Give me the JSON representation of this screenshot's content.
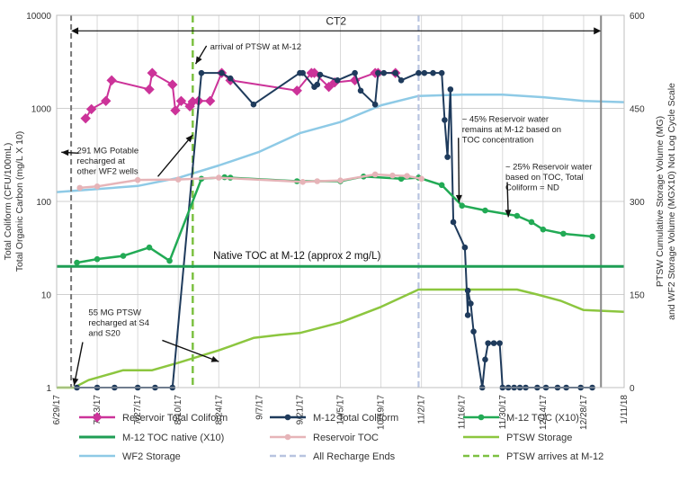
{
  "chart_data": {
    "type": "line",
    "x_axis": {
      "type": "date",
      "range": [
        "2017-06-29",
        "2018-01-11"
      ],
      "tick_labels": [
        "6/29/17",
        "7/13/17",
        "7/27/17",
        "8/10/17",
        "8/24/17",
        "9/7/17",
        "9/21/17",
        "10/5/17",
        "10/19/17",
        "11/2/17",
        "11/16/17",
        "11/30/17",
        "12/14/17",
        "12/28/17",
        "1/11/18"
      ]
    },
    "y_left": {
      "label": "Total Coliform (CFU/100mL)\nTotal Organic Carbon (mg/L X 10)",
      "scale": "log",
      "range": [
        1,
        10000
      ],
      "tick_labels": [
        "1",
        "10",
        "100",
        "1000",
        "10000"
      ]
    },
    "y_right": {
      "label": "PTSW Cumulative Storage Volume (MG)\nand WF2 Storage Volume (MGX10) Not Log Cycle Scale",
      "scale": "linear",
      "range": [
        0,
        600
      ],
      "tick_labels": [
        "0",
        "150",
        "300",
        "450",
        "600"
      ]
    },
    "grid": true,
    "series": [
      {
        "name": "Reservoir Total Coliform",
        "axis": "left",
        "color": "#cc3399",
        "marker": "diamond",
        "points": [
          [
            "2017-07-09",
            780
          ],
          [
            "2017-07-11",
            980
          ],
          [
            "2017-07-16",
            1200
          ],
          [
            "2017-07-18",
            2000
          ],
          [
            "2017-07-31",
            1600
          ],
          [
            "2017-08-01",
            2400
          ],
          [
            "2017-08-08",
            1800
          ],
          [
            "2017-08-09",
            950
          ],
          [
            "2017-08-11",
            1200
          ],
          [
            "2017-08-14",
            1050
          ],
          [
            "2017-08-15",
            1180
          ],
          [
            "2017-08-17",
            1200
          ],
          [
            "2017-08-21",
            1200
          ],
          [
            "2017-08-25",
            2400
          ],
          [
            "2017-08-28",
            2000
          ],
          [
            "2017-09-20",
            1550
          ],
          [
            "2017-09-25",
            2400
          ],
          [
            "2017-09-26",
            2400
          ],
          [
            "2017-10-01",
            1700
          ],
          [
            "2017-10-03",
            1900
          ],
          [
            "2017-10-10",
            2000
          ],
          [
            "2017-10-17",
            2400
          ],
          [
            "2017-10-18",
            2400
          ],
          [
            "2017-10-24",
            2400
          ]
        ]
      },
      {
        "name": "M-12 Total Coliform",
        "axis": "left",
        "color": "#1f3b5c",
        "marker": "circle",
        "points": [
          [
            "2017-07-06",
            1
          ],
          [
            "2017-07-13",
            1
          ],
          [
            "2017-07-19",
            1
          ],
          [
            "2017-07-27",
            1
          ],
          [
            "2017-08-02",
            1
          ],
          [
            "2017-08-08",
            1
          ],
          [
            "2017-08-18",
            2400
          ],
          [
            "2017-08-25",
            2400
          ],
          [
            "2017-08-28",
            2100
          ],
          [
            "2017-09-05",
            1100
          ],
          [
            "2017-09-21",
            2400
          ],
          [
            "2017-09-22",
            2400
          ],
          [
            "2017-09-26",
            1700
          ],
          [
            "2017-09-27",
            1800
          ],
          [
            "2017-09-28",
            2300
          ],
          [
            "2017-10-04",
            2000
          ],
          [
            "2017-10-10",
            2400
          ],
          [
            "2017-10-12",
            1550
          ],
          [
            "2017-10-17",
            1100
          ],
          [
            "2017-10-18",
            2400
          ],
          [
            "2017-10-20",
            2400
          ],
          [
            "2017-10-24",
            2400
          ],
          [
            "2017-10-26",
            2000
          ],
          [
            "2017-11-01",
            2400
          ],
          [
            "2017-11-03",
            2400
          ],
          [
            "2017-11-06",
            2400
          ],
          [
            "2017-11-09",
            2400
          ],
          [
            "2017-11-10",
            750
          ],
          [
            "2017-11-11",
            300
          ],
          [
            "2017-11-12",
            1600
          ],
          [
            "2017-11-13",
            60
          ],
          [
            "2017-11-17",
            32
          ],
          [
            "2017-11-18",
            6
          ],
          [
            "2017-11-18",
            11
          ],
          [
            "2017-11-19",
            8
          ],
          [
            "2017-11-20",
            4
          ],
          [
            "2017-11-23",
            1
          ],
          [
            "2017-11-24",
            2
          ],
          [
            "2017-11-25",
            3
          ],
          [
            "2017-11-27",
            3
          ],
          [
            "2017-11-29",
            3
          ],
          [
            "2017-11-30",
            1
          ],
          [
            "2017-12-02",
            1
          ],
          [
            "2017-12-04",
            1
          ],
          [
            "2017-12-06",
            1
          ],
          [
            "2017-12-08",
            1
          ],
          [
            "2017-12-12",
            1
          ],
          [
            "2017-12-15",
            1
          ],
          [
            "2017-12-19",
            1
          ],
          [
            "2017-12-22",
            1
          ],
          [
            "2017-12-27",
            1
          ],
          [
            "2017-12-31",
            1
          ]
        ]
      },
      {
        "name": "M-12 TOC (X10)",
        "axis": "left",
        "color": "#22aa55",
        "marker": "circle",
        "points": [
          [
            "2017-07-06",
            22
          ],
          [
            "2017-07-13",
            24
          ],
          [
            "2017-07-22",
            26
          ],
          [
            "2017-07-31",
            32
          ],
          [
            "2017-08-07",
            23
          ],
          [
            "2017-08-18",
            175
          ],
          [
            "2017-08-26",
            182
          ],
          [
            "2017-08-28",
            180
          ],
          [
            "2017-09-20",
            165
          ],
          [
            "2017-10-05",
            165
          ],
          [
            "2017-10-13",
            185
          ],
          [
            "2017-10-26",
            175
          ],
          [
            "2017-11-01",
            180
          ],
          [
            "2017-11-09",
            150
          ],
          [
            "2017-11-16",
            90
          ],
          [
            "2017-11-24",
            80
          ],
          [
            "2017-12-05",
            70
          ],
          [
            "2017-12-10",
            60
          ],
          [
            "2017-12-14",
            50
          ],
          [
            "2017-12-21",
            45
          ],
          [
            "2017-12-31",
            42
          ]
        ]
      },
      {
        "name": "M-12 TOC native (X10)",
        "axis": "left",
        "color": "#1f9e55",
        "marker": "none",
        "points": [
          [
            "2017-06-29",
            20
          ],
          [
            "2018-01-11",
            20
          ]
        ]
      },
      {
        "name": "Reservoir TOC",
        "axis": "left",
        "color": "#e6b4b8",
        "marker": "circle",
        "points": [
          [
            "2017-07-07",
            140
          ],
          [
            "2017-07-13",
            145
          ],
          [
            "2017-07-27",
            170
          ],
          [
            "2017-08-10",
            172
          ],
          [
            "2017-08-24",
            180
          ],
          [
            "2017-09-22",
            162
          ],
          [
            "2017-09-27",
            165
          ],
          [
            "2017-10-05",
            168
          ],
          [
            "2017-10-17",
            195
          ],
          [
            "2017-10-23",
            190
          ],
          [
            "2017-10-28",
            188
          ],
          [
            "2017-11-02",
            175
          ]
        ]
      },
      {
        "name": "PTSW Storage",
        "axis": "right",
        "color": "#8cc63f",
        "marker": "none",
        "points": [
          [
            "2017-06-29",
            0
          ],
          [
            "2017-07-05",
            0
          ],
          [
            "2017-07-10",
            12
          ],
          [
            "2017-07-16",
            20
          ],
          [
            "2017-07-22",
            28
          ],
          [
            "2017-08-01",
            28
          ],
          [
            "2017-08-10",
            40
          ],
          [
            "2017-08-24",
            60
          ],
          [
            "2017-09-05",
            80
          ],
          [
            "2017-09-14",
            85
          ],
          [
            "2017-09-21",
            88
          ],
          [
            "2017-10-05",
            105
          ],
          [
            "2017-10-19",
            130
          ],
          [
            "2017-11-01",
            158
          ],
          [
            "2017-11-07",
            158
          ],
          [
            "2017-12-05",
            158
          ],
          [
            "2017-12-12",
            150
          ],
          [
            "2017-12-20",
            140
          ],
          [
            "2017-12-28",
            125
          ],
          [
            "2018-01-11",
            122
          ]
        ]
      },
      {
        "name": "WF2 Storage",
        "axis": "right",
        "color": "#8ecae6",
        "marker": "none",
        "points": [
          [
            "2017-06-29",
            315
          ],
          [
            "2017-07-13",
            320
          ],
          [
            "2017-07-27",
            325
          ],
          [
            "2017-08-10",
            338
          ],
          [
            "2017-08-24",
            358
          ],
          [
            "2017-09-07",
            380
          ],
          [
            "2017-09-21",
            410
          ],
          [
            "2017-10-05",
            428
          ],
          [
            "2017-10-19",
            455
          ],
          [
            "2017-11-01",
            470
          ],
          [
            "2017-11-16",
            472
          ],
          [
            "2017-11-30",
            472
          ],
          [
            "2017-12-14",
            468
          ],
          [
            "2017-12-28",
            462
          ],
          [
            "2018-01-11",
            460
          ]
        ]
      },
      {
        "name": "All Recharge Ends",
        "axis": "vertical",
        "color": "#b8c4e0",
        "style": "dashed",
        "x": "2017-11-01"
      },
      {
        "name": "PTSW arrives at M-12",
        "axis": "vertical",
        "color": "#7dc142",
        "style": "dashed",
        "x": "2017-08-15"
      }
    ],
    "reference_lines": [
      {
        "label": "",
        "x": "2017-07-04",
        "color": "#777777",
        "style": "dashed"
      },
      {
        "label": "",
        "x": "2018-01-03",
        "color": "#888888",
        "style": "solid"
      }
    ],
    "span_annotation": {
      "label": "CT2",
      "from": "2017-07-04",
      "to": "2018-01-03",
      "y": 6800
    },
    "annotations": [
      {
        "text": [
          "arrival of PTSW  at M-12"
        ],
        "x": "2017-08-21",
        "y": 4300
      },
      {
        "text": [
          "291 MG Potable",
          "recharged  at",
          "other WF2 wells"
        ],
        "x": "2017-07-06",
        "y": 330
      },
      {
        "text": [
          "55 MG PTSW",
          "recharged  at S4",
          "and S20"
        ],
        "x": "2017-07-10",
        "y": 6
      },
      {
        "text": [
          "~ 45% Reservoir water",
          "remains at M-12 based on",
          "TOC concentration"
        ],
        "x": "2017-11-16",
        "y": 720
      },
      {
        "text": [
          "~ 25% Reservoir water",
          "based on TOC, Total",
          "Coliform = ND"
        ],
        "x": "2017-12-01",
        "y": 220
      },
      {
        "text": [
          "Native TOC at M-12 (approx 2 mg/L)"
        ],
        "x": "2017-09-20",
        "y": 24
      }
    ],
    "legend": {
      "placement": "bottom",
      "entries": [
        "Reservoir Total Coliform",
        "M-12 Total Coliform",
        "M-12 TOC (X10)",
        "M-12 TOC native (X10)",
        "Reservoir TOC",
        "PTSW Storage",
        "WF2 Storage",
        "All Recharge Ends",
        "PTSW arrives at M-12"
      ]
    }
  }
}
